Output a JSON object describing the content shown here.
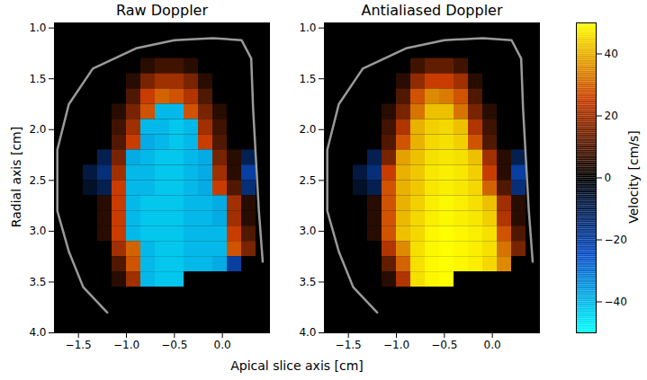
{
  "chart_data": {
    "type": "heatmap",
    "xlabel": "Apical slice axis [cm]",
    "ylabel": "Radial axis [cm]",
    "xlim": [
      -1.75,
      0.5
    ],
    "ylim": [
      0.95,
      4.0
    ],
    "xticks": [
      {
        "value": -1.5,
        "label": "−1.5"
      },
      {
        "value": -1.0,
        "label": "−1.0"
      },
      {
        "value": -0.5,
        "label": "−0.5"
      },
      {
        "value": 0,
        "label": "0.0"
      }
    ],
    "yticks": [
      {
        "value": 1,
        "label": "1.0"
      },
      {
        "value": 1.5,
        "label": "1.5"
      },
      {
        "value": 2,
        "label": "2.0"
      },
      {
        "value": 2.5,
        "label": "2.5"
      },
      {
        "value": 3,
        "label": "3.0"
      },
      {
        "value": 3.5,
        "label": "3.5"
      },
      {
        "value": 4,
        "label": "4.0"
      }
    ],
    "x_bins": [
      -1.75,
      -1.6,
      -1.45,
      -1.3,
      -1.15,
      -1.0,
      -0.85,
      -0.7,
      -0.55,
      -0.4,
      -0.25,
      -0.1,
      0.05,
      0.2,
      0.35,
      0.5
    ],
    "y_bins": [
      1.0,
      1.15,
      1.3,
      1.45,
      1.6,
      1.75,
      1.9,
      2.05,
      2.2,
      2.35,
      2.5,
      2.65,
      2.8,
      2.95,
      3.1,
      3.25,
      3.4,
      3.55,
      3.7,
      3.85,
      4.0
    ],
    "outline": {
      "x": [
        -1.2,
        -1.45,
        -1.6,
        -1.72,
        -1.72,
        -1.6,
        -1.35,
        -0.9,
        -0.5,
        -0.1,
        0.2,
        0.3,
        0.32,
        0.35,
        0.38,
        0.42
      ],
      "y": [
        3.8,
        3.55,
        3.2,
        2.8,
        2.2,
        1.75,
        1.4,
        1.2,
        1.12,
        1.1,
        1.12,
        1.3,
        1.8,
        2.3,
        2.8,
        3.3
      ]
    },
    "panels": [
      {
        "title": "Raw Doppler",
        "values": [
          [
            0,
            0,
            0,
            0,
            0,
            0,
            0,
            0,
            0,
            0,
            0,
            0,
            0,
            0,
            0
          ],
          [
            0,
            0,
            0,
            0,
            0,
            0,
            0,
            0,
            0,
            0,
            0,
            0,
            0,
            0,
            0
          ],
          [
            0,
            0,
            0,
            0,
            0,
            0,
            5,
            8,
            8,
            5,
            0,
            0,
            0,
            0,
            0
          ],
          [
            0,
            0,
            0,
            0,
            0,
            5,
            15,
            20,
            20,
            15,
            5,
            0,
            0,
            0,
            0
          ],
          [
            0,
            0,
            0,
            0,
            0,
            10,
            25,
            30,
            28,
            22,
            10,
            0,
            0,
            0,
            0
          ],
          [
            0,
            0,
            0,
            0,
            5,
            15,
            28,
            -40,
            -40,
            28,
            15,
            5,
            0,
            0,
            0
          ],
          [
            0,
            0,
            0,
            0,
            8,
            20,
            -40,
            -40,
            -42,
            -40,
            20,
            8,
            0,
            0,
            0
          ],
          [
            0,
            0,
            0,
            0,
            10,
            25,
            -38,
            -40,
            -42,
            -40,
            25,
            10,
            0,
            0,
            0
          ],
          [
            0,
            0,
            0,
            -10,
            15,
            -38,
            -40,
            -42,
            -42,
            -40,
            -38,
            15,
            5,
            -10,
            0
          ],
          [
            0,
            0,
            -8,
            -15,
            20,
            -40,
            -40,
            -42,
            -42,
            -40,
            -38,
            20,
            5,
            -20,
            0
          ],
          [
            0,
            0,
            -5,
            -10,
            25,
            -40,
            -40,
            -42,
            -42,
            -40,
            -38,
            25,
            10,
            -15,
            0
          ],
          [
            0,
            0,
            0,
            5,
            25,
            -40,
            -42,
            -42,
            -42,
            -40,
            -40,
            -38,
            20,
            5,
            0
          ],
          [
            0,
            0,
            0,
            5,
            25,
            -40,
            -42,
            -42,
            -42,
            -40,
            -40,
            -38,
            20,
            5,
            0
          ],
          [
            0,
            0,
            0,
            5,
            25,
            -40,
            -42,
            -42,
            -42,
            -40,
            -40,
            -40,
            25,
            10,
            0
          ],
          [
            0,
            0,
            0,
            0,
            20,
            30,
            -40,
            -42,
            -42,
            -40,
            -40,
            -40,
            28,
            15,
            0
          ],
          [
            0,
            0,
            0,
            0,
            10,
            28,
            -40,
            -42,
            -42,
            -40,
            -40,
            -38,
            -20,
            0,
            0
          ],
          [
            0,
            0,
            0,
            0,
            5,
            20,
            -40,
            -42,
            -42,
            0,
            0,
            0,
            0,
            0,
            0
          ],
          [
            0,
            0,
            0,
            0,
            0,
            0,
            0,
            0,
            0,
            0,
            0,
            0,
            0,
            0,
            0
          ],
          [
            0,
            0,
            0,
            0,
            0,
            0,
            0,
            0,
            0,
            0,
            0,
            0,
            0,
            0,
            0
          ],
          [
            0,
            0,
            0,
            0,
            0,
            0,
            0,
            0,
            0,
            0,
            0,
            0,
            0,
            0,
            0
          ]
        ]
      },
      {
        "title": "Antialiased Doppler",
        "values": [
          [
            0,
            0,
            0,
            0,
            0,
            0,
            0,
            0,
            0,
            0,
            0,
            0,
            0,
            0,
            0
          ],
          [
            0,
            0,
            0,
            0,
            0,
            0,
            0,
            0,
            0,
            0,
            0,
            0,
            0,
            0,
            0
          ],
          [
            0,
            0,
            0,
            0,
            0,
            0,
            8,
            12,
            12,
            8,
            0,
            0,
            0,
            0,
            0
          ],
          [
            0,
            0,
            0,
            0,
            0,
            5,
            18,
            25,
            25,
            20,
            5,
            0,
            0,
            0,
            0
          ],
          [
            0,
            0,
            0,
            0,
            0,
            10,
            28,
            35,
            33,
            28,
            10,
            0,
            0,
            0,
            0
          ],
          [
            0,
            0,
            0,
            0,
            5,
            15,
            32,
            42,
            42,
            32,
            15,
            5,
            0,
            0,
            0
          ],
          [
            0,
            0,
            0,
            0,
            8,
            22,
            40,
            44,
            45,
            42,
            22,
            8,
            0,
            0,
            0
          ],
          [
            0,
            0,
            0,
            0,
            10,
            28,
            40,
            45,
            46,
            44,
            28,
            10,
            0,
            0,
            0
          ],
          [
            0,
            0,
            0,
            -10,
            15,
            38,
            42,
            46,
            47,
            46,
            42,
            20,
            5,
            -10,
            0
          ],
          [
            0,
            0,
            -8,
            -15,
            25,
            40,
            43,
            47,
            48,
            47,
            44,
            25,
            5,
            -20,
            0
          ],
          [
            0,
            0,
            -5,
            -10,
            28,
            40,
            43,
            47,
            48,
            47,
            45,
            30,
            10,
            -15,
            0
          ],
          [
            0,
            0,
            0,
            5,
            28,
            40,
            44,
            48,
            49,
            48,
            46,
            42,
            20,
            5,
            0
          ],
          [
            0,
            0,
            0,
            5,
            28,
            41,
            45,
            48,
            49,
            48,
            47,
            44,
            22,
            5,
            0
          ],
          [
            0,
            0,
            0,
            5,
            28,
            42,
            45,
            49,
            50,
            49,
            48,
            46,
            28,
            10,
            0
          ],
          [
            0,
            0,
            0,
            0,
            22,
            35,
            46,
            49,
            50,
            49,
            48,
            46,
            32,
            15,
            0
          ],
          [
            0,
            0,
            0,
            0,
            12,
            30,
            46,
            49,
            50,
            49,
            48,
            45,
            35,
            0,
            0
          ],
          [
            0,
            0,
            0,
            0,
            5,
            22,
            46,
            49,
            50,
            0,
            0,
            0,
            0,
            0,
            0
          ],
          [
            0,
            0,
            0,
            0,
            0,
            0,
            0,
            0,
            0,
            0,
            0,
            0,
            0,
            0,
            0
          ],
          [
            0,
            0,
            0,
            0,
            0,
            0,
            0,
            0,
            0,
            0,
            0,
            0,
            0,
            0,
            0
          ],
          [
            0,
            0,
            0,
            0,
            0,
            0,
            0,
            0,
            0,
            0,
            0,
            0,
            0,
            0,
            0
          ]
        ]
      }
    ],
    "colorbar": {
      "label": "Velocity [cm/s]",
      "range": [
        -50,
        50
      ],
      "ticks": [
        -40,
        -20,
        0,
        20,
        40
      ]
    }
  }
}
